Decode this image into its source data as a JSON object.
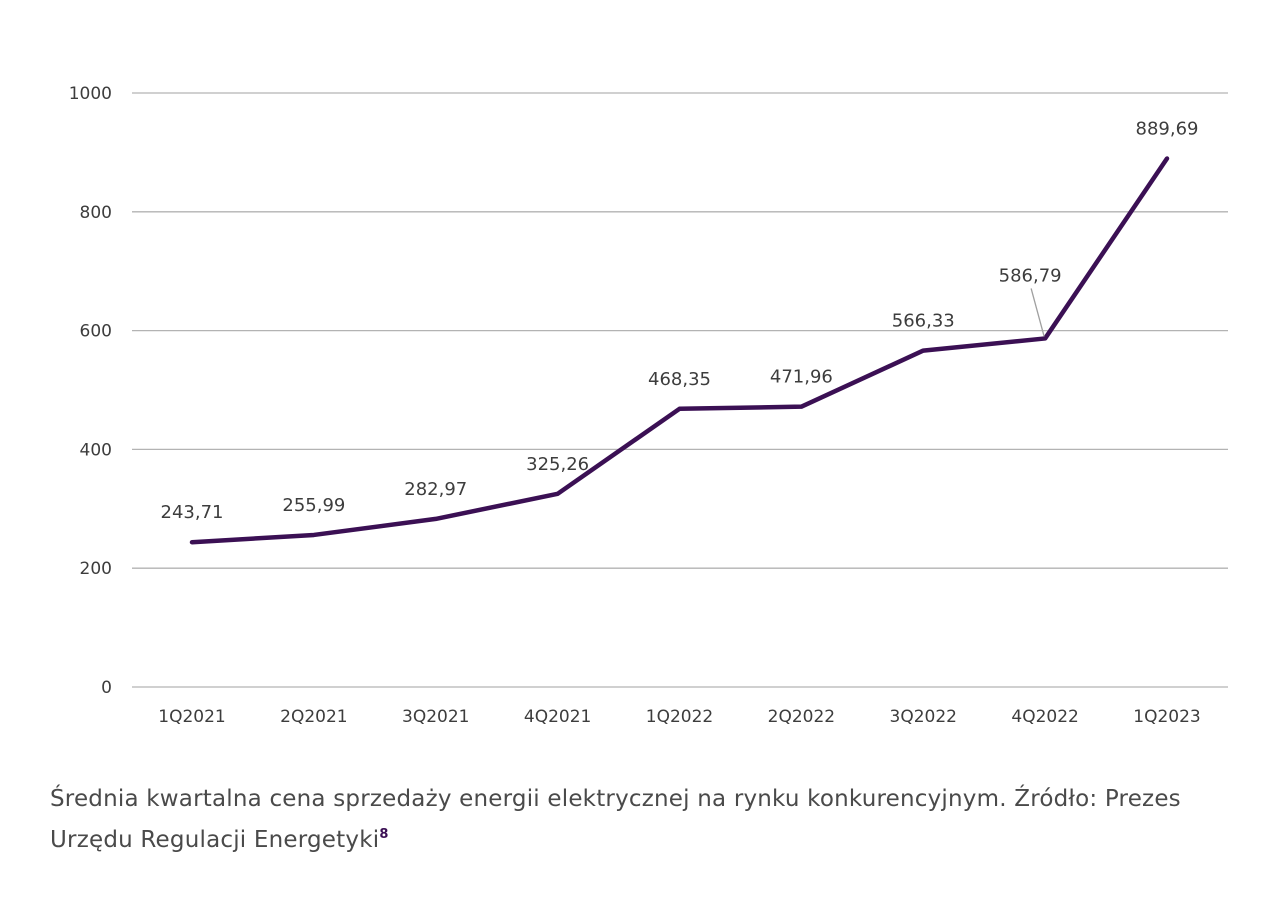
{
  "chart_data": {
    "type": "line",
    "categories": [
      "1Q2021",
      "2Q2021",
      "3Q2021",
      "4Q2021",
      "1Q2022",
      "2Q2022",
      "3Q2022",
      "4Q2022",
      "1Q2023"
    ],
    "values": [
      243.71,
      255.99,
      282.97,
      325.26,
      468.35,
      471.96,
      566.33,
      586.79,
      889.69
    ],
    "data_labels": [
      "243,71",
      "255,99",
      "282,97",
      "325,26",
      "468,35",
      "471,96",
      "566,33",
      "586,79",
      "889,69"
    ],
    "y_ticks": [
      0,
      200,
      400,
      600,
      800,
      1000
    ],
    "ylim": [
      0,
      1000
    ],
    "grid": true,
    "line_color": "#3b1054",
    "grid_color": "#b3b3b3"
  },
  "caption": {
    "text": "Średnia kwartalna cena sprzedaży energii elektrycznej na rynku konkurencyjnym. Źródło: Prezes Urzędu Regulacji Energetyki",
    "footnote": "8"
  }
}
